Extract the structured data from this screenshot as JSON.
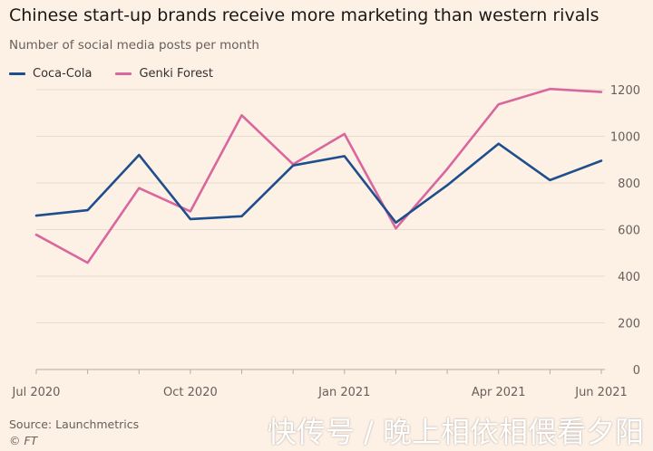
{
  "header": {
    "title": "Chinese start-up brands receive more marketing than western rivals",
    "subtitle": "Number of social media posts per month"
  },
  "footer": {
    "source": "Source: Launchmetrics",
    "credit": "© FT",
    "watermark": "快传号 / 晚上相依相偎看夕阳"
  },
  "colors": {
    "background": "#fdf1e6",
    "grid": "#e8dccf",
    "axis": "#b8aca2"
  },
  "chart_data": {
    "type": "line",
    "x": [
      "Jul 2020",
      "Aug 2020",
      "Sep 2020",
      "Oct 2020",
      "Nov 2020",
      "Dec 2020",
      "Jan 2021",
      "Feb 2021",
      "Mar 2021",
      "Apr 2021",
      "May 2021",
      "Jun 2021"
    ],
    "x_tick_labels": [
      {
        "index": 0,
        "label": "Jul 2020"
      },
      {
        "index": 3,
        "label": "Oct 2020"
      },
      {
        "index": 6,
        "label": "Jan 2021"
      },
      {
        "index": 9,
        "label": "Apr 2021"
      },
      {
        "index": 11,
        "label": "Jun 2021"
      }
    ],
    "series": [
      {
        "name": "Coca-Cola",
        "color": "#1f4e8c",
        "values": [
          660,
          683,
          920,
          645,
          657,
          875,
          915,
          630,
          790,
          968,
          812,
          895
        ]
      },
      {
        "name": "Genki Forest",
        "color": "#d9679e",
        "values": [
          578,
          458,
          778,
          678,
          1090,
          880,
          1010,
          605,
          860,
          1137,
          1203,
          1190
        ]
      }
    ],
    "ylim": [
      0,
      1200
    ],
    "y_ticks": [
      0,
      200,
      400,
      600,
      800,
      1000,
      1200
    ],
    "y_axis_side": "right",
    "grid": true,
    "legend": "top-left"
  }
}
